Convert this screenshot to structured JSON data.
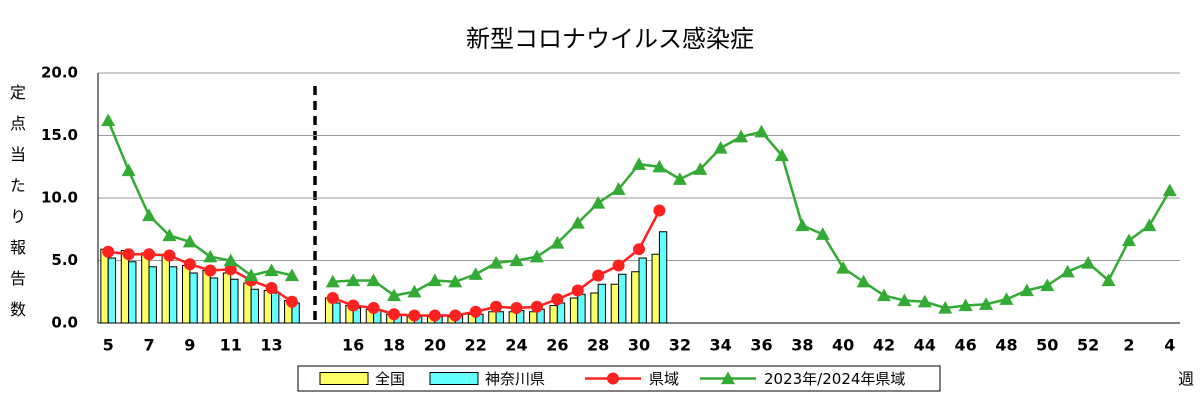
{
  "chart_data": {
    "type": "bar_line",
    "title": "新型コロナウイルス感染症",
    "y_label": "定点当たり報告数",
    "x_label": "週",
    "categories": [
      "5",
      null,
      "7",
      null,
      "9",
      null,
      "11",
      null,
      "13",
      null,
      null,
      null,
      "16",
      null,
      "18",
      null,
      "20",
      null,
      "22",
      null,
      "24",
      null,
      "26",
      null,
      "28",
      null,
      "30",
      null,
      "32",
      null,
      "34",
      null,
      "36",
      null,
      "38",
      null,
      "40",
      null,
      "42",
      null,
      "44",
      null,
      "46",
      null,
      "48",
      null,
      "50",
      null,
      "52",
      null,
      "2",
      null,
      "4"
    ],
    "ylim": [
      0,
      20
    ],
    "yticks": [
      {
        "value": 0,
        "label": "0.0"
      },
      {
        "value": 5,
        "label": "5.0"
      },
      {
        "value": 10,
        "label": "10.0"
      },
      {
        "value": 15,
        "label": "15.0"
      },
      {
        "value": 20,
        "label": "20.0"
      }
    ],
    "grid": true,
    "legend": "bottom",
    "series": [
      {
        "name": "全国",
        "kind": "bar",
        "color": "#ffff66",
        "values": [
          5.9,
          5.8,
          5.6,
          5.5,
          4.6,
          4.2,
          4.0,
          3.2,
          2.6,
          1.8,
          null,
          2.0,
          1.4,
          1.1,
          0.7,
          0.5,
          0.5,
          0.5,
          0.7,
          0.9,
          0.9,
          0.9,
          1.4,
          2.0,
          2.4,
          3.1,
          4.1,
          5.5,
          null,
          null,
          null,
          null,
          null,
          null,
          null,
          null,
          null,
          null,
          null,
          null,
          null,
          null,
          null,
          null,
          null,
          null,
          null,
          null,
          null,
          null,
          null,
          null,
          null
        ]
      },
      {
        "name": "神奈川県",
        "kind": "bar",
        "color": "#66ffff",
        "values": [
          5.2,
          4.9,
          4.5,
          4.5,
          4.0,
          3.6,
          3.5,
          2.7,
          2.4,
          1.6,
          null,
          1.6,
          1.2,
          1.0,
          0.6,
          0.5,
          0.5,
          0.6,
          0.7,
          0.9,
          1.0,
          1.1,
          1.6,
          2.3,
          3.1,
          3.9,
          5.2,
          7.3,
          null,
          null,
          null,
          null,
          null,
          null,
          null,
          null,
          null,
          null,
          null,
          null,
          null,
          null,
          null,
          null,
          null,
          null,
          null,
          null,
          null,
          null,
          null,
          null,
          null
        ]
      },
      {
        "name": "県域",
        "kind": "line",
        "marker": "circle",
        "color": "#ff2020",
        "values": [
          5.7,
          5.5,
          5.5,
          5.4,
          4.7,
          4.2,
          4.3,
          3.4,
          2.8,
          1.7,
          null,
          2.0,
          1.4,
          1.2,
          0.7,
          0.6,
          0.6,
          0.6,
          0.9,
          1.3,
          1.2,
          1.3,
          1.9,
          2.6,
          3.8,
          4.6,
          5.9,
          9.0,
          null,
          null,
          null,
          null,
          null,
          null,
          null,
          null,
          null,
          null,
          null,
          null,
          null,
          null,
          null,
          null,
          null,
          null,
          null,
          null,
          null,
          null,
          null,
          null,
          null
        ]
      },
      {
        "name": "2023年/2024年県域",
        "kind": "line",
        "marker": "triangle",
        "color": "#33aa33",
        "values": [
          16.2,
          12.2,
          8.6,
          7.0,
          6.5,
          5.3,
          5.0,
          3.8,
          4.2,
          3.8,
          null,
          3.3,
          3.4,
          3.4,
          2.2,
          2.5,
          3.4,
          3.3,
          3.9,
          4.8,
          5.0,
          5.3,
          6.4,
          8.0,
          9.6,
          10.7,
          12.7,
          12.5,
          11.5,
          12.3,
          14.0,
          14.9,
          15.3,
          13.4,
          7.8,
          7.1,
          4.4,
          3.3,
          2.2,
          1.8,
          1.7,
          1.2,
          1.4,
          1.5,
          1.9,
          2.6,
          3.0,
          4.1,
          4.8,
          3.4,
          6.6,
          7.8,
          10.6
        ]
      }
    ]
  }
}
